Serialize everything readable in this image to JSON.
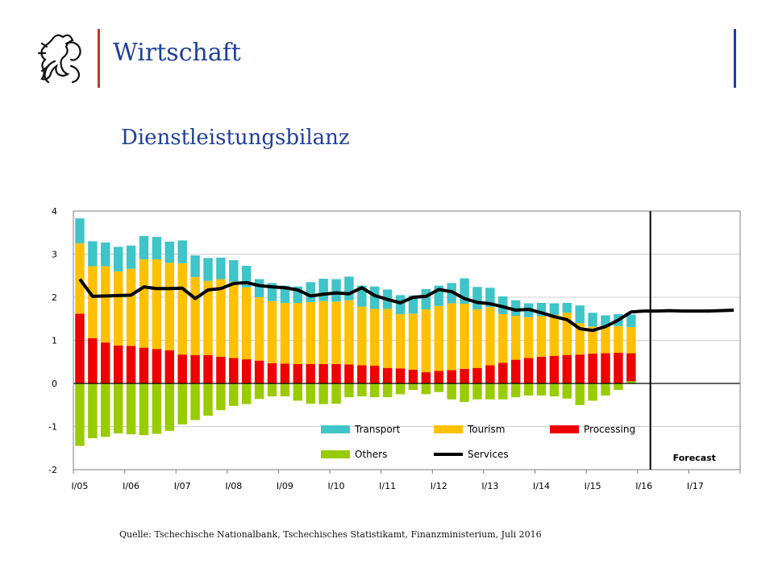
{
  "header": {
    "title": "Wirtschaft"
  },
  "slide": {
    "title": "Dienstleistungsbilanz"
  },
  "source": {
    "text": "Quelle: Tschechische Nationalbank, Tschechisches Statistikamt, Finanzministerium, Juli 2016"
  },
  "colors": {
    "transport": "#3fc4c8",
    "tourism": "#ffc000",
    "processing": "#ee0000",
    "others": "#99cc00",
    "services": "#000000",
    "header_blue": "#1f3f99",
    "header_red": "#c0392b"
  },
  "chart_data": {
    "type": "bar",
    "stacked": true,
    "ylim": [
      -2,
      4
    ],
    "yticks": [
      "4",
      "3",
      "2",
      "1",
      "0",
      "-1",
      "-2"
    ],
    "yticks_values": [
      4,
      3,
      2,
      1,
      0,
      -1,
      -2
    ],
    "xlabels": [
      "I/05",
      "I/06",
      "I/07",
      "I/08",
      "I/09",
      "I/10",
      "I/11",
      "I/12",
      "I/13",
      "I/14",
      "I/15",
      "I/16",
      "I/17"
    ],
    "quarters_total": 52,
    "forecast_start_quarter": 45,
    "forecast_label": "Forecast",
    "legend": [
      {
        "key": "transport",
        "label": "Transport"
      },
      {
        "key": "tourism",
        "label": "Tourism"
      },
      {
        "key": "processing",
        "label": "Processing"
      },
      {
        "key": "others",
        "label": "Others"
      },
      {
        "key": "services",
        "label": "Services"
      }
    ],
    "processing": [
      1.62,
      1.05,
      0.95,
      0.88,
      0.87,
      0.83,
      0.8,
      0.77,
      0.67,
      0.66,
      0.66,
      0.62,
      0.59,
      0.56,
      0.53,
      0.47,
      0.46,
      0.45,
      0.45,
      0.45,
      0.45,
      0.44,
      0.42,
      0.41,
      0.36,
      0.35,
      0.32,
      0.26,
      0.29,
      0.31,
      0.34,
      0.36,
      0.42,
      0.48,
      0.55,
      0.59,
      0.62,
      0.64,
      0.66,
      0.67,
      0.69,
      0.7,
      0.71,
      0.7
    ],
    "tourism": [
      1.63,
      1.67,
      1.77,
      1.72,
      1.79,
      2.05,
      2.08,
      2.03,
      2.12,
      1.81,
      1.72,
      1.8,
      1.77,
      1.67,
      1.47,
      1.44,
      1.41,
      1.42,
      1.44,
      1.46,
      1.45,
      1.49,
      1.36,
      1.32,
      1.37,
      1.26,
      1.3,
      1.46,
      1.51,
      1.55,
      1.51,
      1.36,
      1.35,
      1.13,
      1.02,
      0.95,
      0.94,
      0.95,
      0.98,
      0.73,
      0.63,
      0.62,
      0.62,
      0.61
    ],
    "transport": [
      0.58,
      0.58,
      0.55,
      0.57,
      0.54,
      0.54,
      0.52,
      0.49,
      0.53,
      0.5,
      0.53,
      0.5,
      0.5,
      0.5,
      0.42,
      0.42,
      0.4,
      0.38,
      0.46,
      0.52,
      0.52,
      0.55,
      0.49,
      0.52,
      0.45,
      0.44,
      0.42,
      0.47,
      0.47,
      0.47,
      0.59,
      0.52,
      0.45,
      0.41,
      0.36,
      0.32,
      0.31,
      0.27,
      0.23,
      0.41,
      0.32,
      0.26,
      0.28,
      0.29
    ],
    "others": [
      -1.45,
      -1.27,
      -1.24,
      -1.16,
      -1.18,
      -1.2,
      -1.17,
      -1.1,
      -0.95,
      -0.85,
      -0.75,
      -0.62,
      -0.52,
      -0.48,
      -0.36,
      -0.3,
      -0.3,
      -0.4,
      -0.47,
      -0.48,
      -0.47,
      -0.32,
      -0.3,
      -0.32,
      -0.32,
      -0.25,
      -0.15,
      -0.25,
      -0.2,
      -0.37,
      -0.43,
      -0.37,
      -0.37,
      -0.37,
      -0.32,
      -0.28,
      -0.28,
      -0.3,
      -0.35,
      -0.5,
      -0.4,
      -0.28,
      -0.15,
      0.05
    ],
    "services": [
      2.42,
      2.02,
      2.03,
      2.04,
      2.05,
      2.24,
      2.2,
      2.2,
      2.21,
      1.97,
      2.17,
      2.2,
      2.32,
      2.34,
      2.27,
      2.24,
      2.22,
      2.17,
      2.03,
      2.07,
      2.1,
      2.08,
      2.22,
      2.04,
      1.95,
      1.87,
      2.0,
      2.02,
      2.18,
      2.13,
      1.97,
      1.88,
      1.85,
      1.78,
      1.7,
      1.72,
      1.64,
      1.55,
      1.48,
      1.27,
      1.23,
      1.32,
      1.47,
      1.66,
      1.68,
      1.68,
      1.69,
      1.68,
      1.68,
      1.68,
      1.69,
      1.7
    ]
  }
}
